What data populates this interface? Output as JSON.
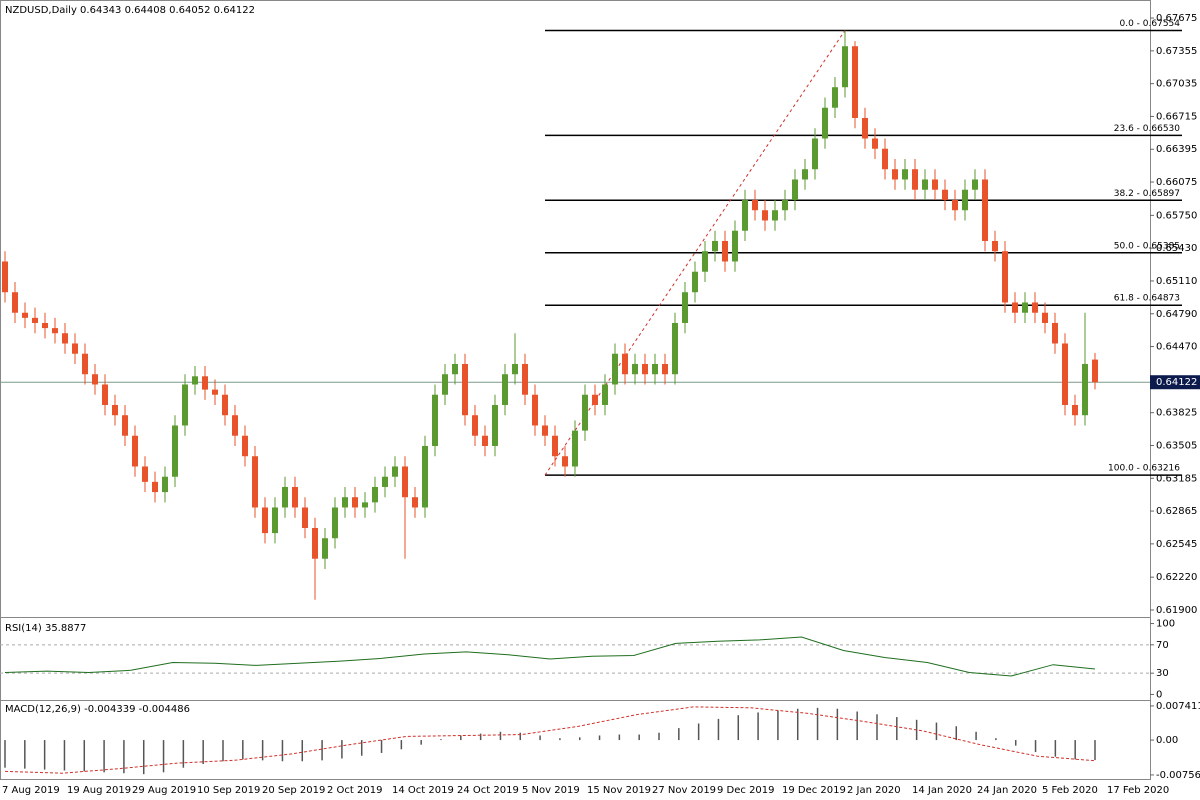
{
  "chart_data": [
    {
      "type": "candlestick",
      "title": "NZDUSD,Daily  0.64343 0.64408 0.64052 0.64122",
      "up_color": "#5b9a31",
      "down_color": "#e8532b",
      "open": [
        0.653,
        0.65,
        0.648,
        0.6475,
        0.647,
        0.6465,
        0.646,
        0.645,
        0.644,
        0.642,
        0.641,
        0.639,
        0.638,
        0.636,
        0.633,
        0.6315,
        0.6305,
        0.632,
        0.637,
        0.641,
        0.6418,
        0.6405,
        0.64,
        0.638,
        0.636,
        0.634,
        0.629,
        0.6265,
        0.629,
        0.631,
        0.629,
        0.627,
        0.624,
        0.626,
        0.629,
        0.63,
        0.629,
        0.6295,
        0.631,
        0.632,
        0.633,
        0.63,
        0.629,
        0.635,
        0.64,
        0.642,
        0.643,
        0.638,
        0.636,
        0.635,
        0.639,
        0.642,
        0.643,
        0.64,
        0.637,
        0.636,
        0.634,
        0.633,
        0.6365,
        0.64,
        0.639,
        0.641,
        0.644,
        0.642,
        0.643,
        0.642,
        0.643,
        0.642,
        0.647,
        0.65,
        0.652,
        0.654,
        0.655,
        0.653,
        0.656,
        0.659,
        0.658,
        0.657,
        0.658,
        0.659,
        0.661,
        0.662,
        0.665,
        0.668,
        0.67,
        0.674,
        0.667,
        0.665,
        0.664,
        0.662,
        0.661,
        0.662,
        0.66,
        0.661,
        0.66,
        0.659,
        0.658,
        0.66,
        0.661,
        0.655,
        0.654,
        0.649,
        0.648,
        0.649,
        0.648,
        0.647,
        0.645,
        0.639,
        0.638,
        0.64343
      ],
      "high": [
        0.654,
        0.651,
        0.649,
        0.6485,
        0.648,
        0.6475,
        0.647,
        0.646,
        0.645,
        0.643,
        0.642,
        0.64,
        0.639,
        0.637,
        0.634,
        0.6325,
        0.633,
        0.638,
        0.642,
        0.6428,
        0.6428,
        0.6415,
        0.641,
        0.639,
        0.637,
        0.635,
        0.63,
        0.63,
        0.632,
        0.632,
        0.63,
        0.628,
        0.627,
        0.63,
        0.631,
        0.631,
        0.6305,
        0.632,
        0.633,
        0.634,
        0.634,
        0.631,
        0.636,
        0.641,
        0.643,
        0.644,
        0.644,
        0.639,
        0.637,
        0.64,
        0.643,
        0.646,
        0.644,
        0.641,
        0.638,
        0.637,
        0.635,
        0.6375,
        0.641,
        0.641,
        0.642,
        0.645,
        0.645,
        0.644,
        0.644,
        0.644,
        0.644,
        0.648,
        0.651,
        0.653,
        0.655,
        0.656,
        0.656,
        0.657,
        0.66,
        0.66,
        0.659,
        0.659,
        0.66,
        0.662,
        0.663,
        0.666,
        0.669,
        0.671,
        0.6755,
        0.6745,
        0.668,
        0.666,
        0.665,
        0.663,
        0.663,
        0.663,
        0.662,
        0.662,
        0.661,
        0.66,
        0.661,
        0.662,
        0.662,
        0.656,
        0.655,
        0.65,
        0.65,
        0.65,
        0.649,
        0.648,
        0.646,
        0.64,
        0.648,
        0.64408
      ],
      "low": [
        0.649,
        0.647,
        0.6465,
        0.646,
        0.6455,
        0.645,
        0.644,
        0.643,
        0.641,
        0.64,
        0.638,
        0.637,
        0.635,
        0.632,
        0.6305,
        0.6295,
        0.6295,
        0.631,
        0.636,
        0.64,
        0.6395,
        0.639,
        0.637,
        0.635,
        0.633,
        0.628,
        0.6255,
        0.6255,
        0.628,
        0.628,
        0.626,
        0.62,
        0.623,
        0.625,
        0.628,
        0.628,
        0.628,
        0.6285,
        0.63,
        0.631,
        0.624,
        0.628,
        0.628,
        0.634,
        0.639,
        0.641,
        0.637,
        0.635,
        0.634,
        0.634,
        0.638,
        0.641,
        0.639,
        0.636,
        0.635,
        0.633,
        0.632,
        0.632,
        0.6355,
        0.638,
        0.638,
        0.64,
        0.641,
        0.641,
        0.641,
        0.641,
        0.641,
        0.641,
        0.646,
        0.649,
        0.651,
        0.653,
        0.652,
        0.652,
        0.655,
        0.657,
        0.656,
        0.656,
        0.657,
        0.658,
        0.66,
        0.661,
        0.664,
        0.667,
        0.669,
        0.666,
        0.664,
        0.663,
        0.661,
        0.66,
        0.66,
        0.659,
        0.659,
        0.659,
        0.658,
        0.657,
        0.657,
        0.659,
        0.654,
        0.653,
        0.648,
        0.647,
        0.647,
        0.647,
        0.646,
        0.644,
        0.638,
        0.637,
        0.637,
        0.64052
      ],
      "close": [
        0.65,
        0.648,
        0.6475,
        0.647,
        0.6465,
        0.646,
        0.645,
        0.644,
        0.642,
        0.641,
        0.639,
        0.638,
        0.636,
        0.633,
        0.6315,
        0.6305,
        0.632,
        0.637,
        0.641,
        0.6418,
        0.6405,
        0.64,
        0.638,
        0.636,
        0.634,
        0.629,
        0.6265,
        0.629,
        0.631,
        0.629,
        0.627,
        0.624,
        0.626,
        0.629,
        0.63,
        0.629,
        0.6295,
        0.631,
        0.632,
        0.633,
        0.63,
        0.629,
        0.635,
        0.64,
        0.642,
        0.643,
        0.638,
        0.636,
        0.635,
        0.639,
        0.642,
        0.643,
        0.64,
        0.637,
        0.636,
        0.634,
        0.633,
        0.6365,
        0.64,
        0.639,
        0.641,
        0.644,
        0.642,
        0.643,
        0.642,
        0.643,
        0.642,
        0.647,
        0.65,
        0.652,
        0.654,
        0.655,
        0.653,
        0.656,
        0.659,
        0.658,
        0.657,
        0.658,
        0.659,
        0.661,
        0.662,
        0.665,
        0.668,
        0.67,
        0.674,
        0.667,
        0.665,
        0.664,
        0.662,
        0.661,
        0.662,
        0.66,
        0.661,
        0.66,
        0.659,
        0.658,
        0.66,
        0.661,
        0.655,
        0.654,
        0.649,
        0.648,
        0.649,
        0.648,
        0.647,
        0.645,
        0.639,
        0.638,
        0.643,
        0.64122
      ],
      "last_price": 0.64122,
      "fib_levels": [
        {
          "value": 0.67554,
          "label": "0.0 - 0.67554"
        },
        {
          "value": 0.6653,
          "label": "23.6 - 0.66530"
        },
        {
          "value": 0.65897,
          "label": "38.2 - 0.65897"
        },
        {
          "value": 0.65385,
          "label": "50.0 - 0.65385"
        },
        {
          "value": 0.64873,
          "label": "61.8 - 0.64873"
        },
        {
          "value": 0.63216,
          "label": "100.0 - 0.63216"
        }
      ],
      "ylim": [
        0.61851,
        0.67851
      ],
      "yticks": [
        0.67675,
        0.67355,
        0.67035,
        0.66715,
        0.66395,
        0.66075,
        {
          "value": 0.6575,
          "label": "0.65750"
        },
        {
          "value": 0.6543,
          "label": "0.65430"
        },
        {
          "value": 0.6511,
          "label": "0.65110"
        },
        {
          "value": 0.6479,
          "label": "0.64790"
        },
        {
          "value": 0.6447,
          "label": "0.64470"
        },
        0.64145,
        0.63825,
        0.63505,
        0.63185,
        0.62865,
        0.62545,
        {
          "value": 0.6222,
          "label": "0.62220"
        },
        {
          "value": 0.619,
          "label": "0.61900"
        }
      ],
      "date_labels": [
        "7 Aug 2019",
        "19 Aug 2019",
        "29 Aug 2019",
        "10 Sep 2019",
        "20 Sep 2019",
        "2 Oct 2019",
        "14 Oct 2019",
        "24 Oct 2019",
        "5 Nov 2019",
        "15 Nov 2019",
        "27 Nov 2019",
        "9 Dec 2019",
        "19 Dec 2019",
        "2 Jan 2020",
        "14 Jan 2020",
        "24 Jan 2020",
        "5 Feb 2020",
        "17 Feb 2020"
      ]
    },
    {
      "type": "line",
      "title": "RSI(14) 35.8877",
      "color": "#1f6e1f",
      "values": [
        31,
        33,
        31,
        34,
        45,
        44,
        41,
        44,
        47,
        51,
        57,
        60,
        56,
        50,
        54,
        55,
        72,
        75,
        77,
        81,
        62,
        52,
        45,
        31,
        26,
        42,
        35.8877
      ],
      "ylim": [
        -5,
        105
      ],
      "yticks": [
        100,
        70,
        30,
        0
      ],
      "levels": [
        70,
        30
      ]
    },
    {
      "type": "macd",
      "title": "MACD(12,26,9) -0.004339 -0.004486",
      "color": "#555555",
      "signal_color": "#d0302a",
      "values": [
        -0.006,
        -0.0062,
        -0.0064,
        -0.0066,
        -0.0068,
        -0.007,
        -0.0072,
        -0.0074,
        -0.007,
        -0.006,
        -0.0052,
        -0.0046,
        -0.0042,
        -0.0044,
        -0.0046,
        -0.0046,
        -0.0044,
        -0.004,
        -0.0034,
        -0.0028,
        -0.002,
        -0.001,
        0.0002,
        0.001,
        0.0014,
        0.0018,
        0.0016,
        0.001,
        0.0004,
        0.0006,
        0.001,
        0.0012,
        0.0012,
        0.0016,
        0.0026,
        0.0036,
        0.0046,
        0.0054,
        0.006,
        0.0064,
        0.0068,
        0.007,
        0.0068,
        0.0062,
        0.0056,
        0.005,
        0.0044,
        0.0038,
        0.003,
        0.0018,
        0.0004,
        -0.0012,
        -0.0026,
        -0.0036,
        -0.0042,
        -0.004339
      ],
      "signal": [
        -0.0068,
        -0.0072,
        -0.0062,
        -0.005,
        -0.0044,
        -0.003,
        -0.001,
        0.0008,
        0.001,
        0.0012,
        0.003,
        0.0055,
        0.0072,
        0.007,
        0.0058,
        0.004,
        0.002,
        -0.001,
        -0.0035,
        -0.004486
      ],
      "ylim": [
        -0.0091,
        0.0087
      ],
      "yticks": [
        0.007411,
        {
          "value": 0,
          "label": "0.00"
        },
        -0.007565
      ]
    }
  ]
}
